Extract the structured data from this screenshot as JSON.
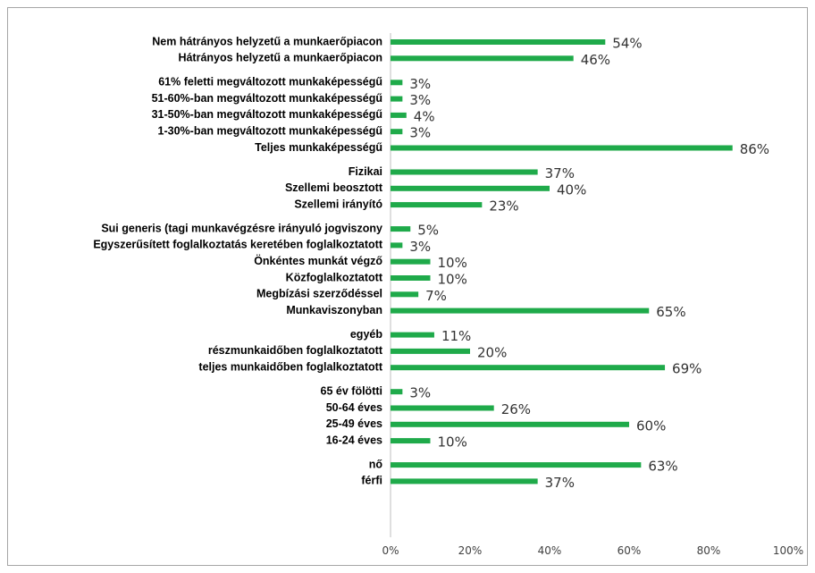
{
  "chart_data": {
    "type": "bar",
    "orientation": "horizontal",
    "bar_color": "#1faa4a",
    "xlim": [
      0,
      100
    ],
    "x_unit": "%",
    "x_ticks": [
      "0%",
      "20%",
      "40%",
      "60%",
      "80%",
      "100%"
    ],
    "grid": false,
    "legend": "none",
    "groups": [
      {
        "categories": [
          "Nem hátrányos helyzetű a munkaerőpiacon",
          "Hátrányos helyzetű a munkaerőpiacon"
        ],
        "values": [
          54,
          46
        ],
        "labels": [
          "54%",
          "46%"
        ]
      },
      {
        "categories": [
          "61% feletti megváltozott munkaképességű",
          "51-60%-ban megváltozott munkaképességű",
          "31-50%-ban megváltozott munkaképességű",
          "1-30%-ban megváltozott munkaképességű",
          "Teljes munkaképességű"
        ],
        "values": [
          3,
          3,
          4,
          3,
          86
        ],
        "labels": [
          "3%",
          "3%",
          "4%",
          "3%",
          "86%"
        ]
      },
      {
        "categories": [
          "Fizikai",
          "Szellemi beosztott",
          "Szellemi irányító"
        ],
        "values": [
          37,
          40,
          23
        ],
        "labels": [
          "37%",
          "40%",
          "23%"
        ]
      },
      {
        "categories": [
          "Sui generis (tagi munkavégzésre irányuló jogviszony",
          "Egyszerűsített foglalkoztatás keretében foglalkoztatott",
          "Önkéntes munkát végző",
          "Közfoglalkoztatott",
          "Megbízási szerződéssel",
          "Munkaviszonyban"
        ],
        "values": [
          5,
          3,
          10,
          10,
          7,
          65
        ],
        "labels": [
          "5%",
          "3%",
          "10%",
          "10%",
          "7%",
          "65%"
        ]
      },
      {
        "categories": [
          "egyéb",
          "részmunkaidőben foglalkoztatott",
          "teljes munkaidőben foglalkoztatott"
        ],
        "values": [
          11,
          20,
          69
        ],
        "labels": [
          "11%",
          "20%",
          "69%"
        ]
      },
      {
        "categories": [
          "65 év fölötti",
          "50-64 éves",
          "25-49 éves",
          "16-24 éves"
        ],
        "values": [
          3,
          26,
          60,
          10
        ],
        "labels": [
          "3%",
          "26%",
          "60%",
          "10%"
        ]
      },
      {
        "categories": [
          "nő",
          "férfi"
        ],
        "values": [
          63,
          37
        ],
        "labels": [
          "63%",
          "37%"
        ]
      }
    ]
  }
}
